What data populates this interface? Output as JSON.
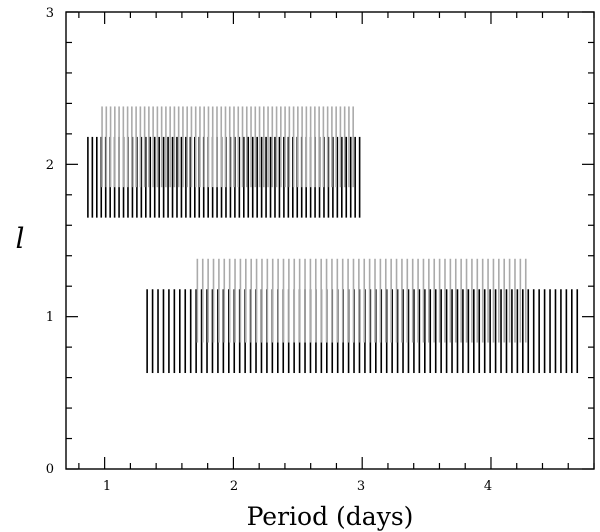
{
  "chart_data": {
    "type": "bar",
    "xlabel": "Period (days)",
    "ylabel": "l",
    "xlim": [
      0.7,
      4.8
    ],
    "ylim": [
      0,
      3
    ],
    "x_ticks": [
      "1",
      "2",
      "3",
      "4"
    ],
    "y_ticks": [
      "0",
      "1",
      "2",
      "3"
    ],
    "grid": false,
    "legend": "none",
    "series": [
      {
        "color": "#000000",
        "ell": 2,
        "y_range": [
          1.65,
          2.18
        ],
        "period_range": [
          0.87,
          2.98
        ],
        "count": 62
      },
      {
        "color": "#aaaaaa",
        "ell": 2,
        "y_range": [
          1.85,
          2.38
        ],
        "period_range": [
          0.98,
          2.93
        ],
        "count": 60
      },
      {
        "color": "#000000",
        "ell": 1,
        "y_range": [
          0.63,
          1.18
        ],
        "period_range": [
          1.33,
          4.67
        ],
        "count": 80
      },
      {
        "color": "#aaaaaa",
        "ell": 1,
        "y_range": [
          0.83,
          1.38
        ],
        "period_range": [
          1.72,
          4.27
        ],
        "count": 62
      }
    ]
  }
}
